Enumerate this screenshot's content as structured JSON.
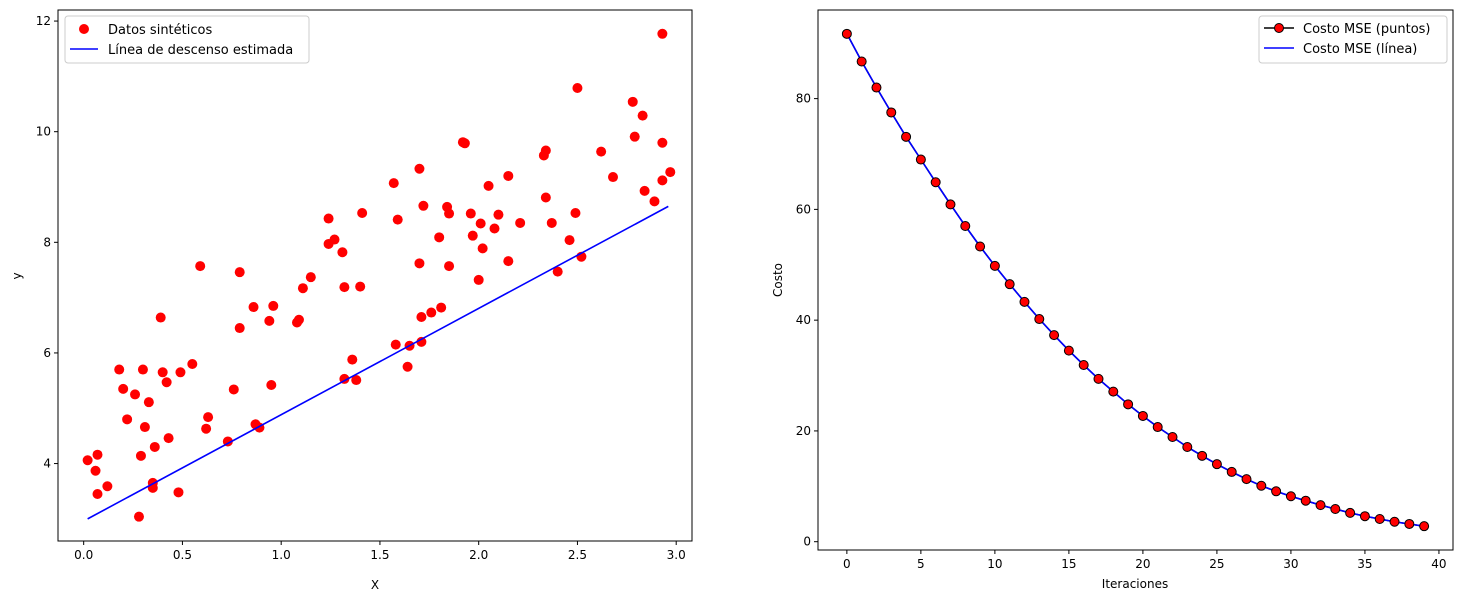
{
  "chart_data": [
    {
      "type": "scatter",
      "xlabel": "X",
      "ylabel": "y",
      "xlim": [
        -0.13,
        3.08
      ],
      "ylim": [
        2.6,
        12.2
      ],
      "xticks": [
        0.0,
        0.5,
        1.0,
        1.5,
        2.0,
        2.5,
        3.0
      ],
      "xtick_labels": [
        "0.0",
        "0.5",
        "1.0",
        "1.5",
        "2.0",
        "2.5",
        "3.0"
      ],
      "yticks": [
        4,
        6,
        8,
        10,
        12
      ],
      "ytick_labels": [
        "4",
        "6",
        "8",
        "10",
        "12"
      ],
      "legend_position": "top-left",
      "grid": false,
      "series": [
        {
          "name": "Datos sintéticos",
          "kind": "scatter",
          "color": "#ff0000",
          "points": [
            [
              0.02,
              4.06
            ],
            [
              0.06,
              3.87
            ],
            [
              0.07,
              4.16
            ],
            [
              0.07,
              3.45
            ],
            [
              0.12,
              3.59
            ],
            [
              0.18,
              5.7
            ],
            [
              0.2,
              5.35
            ],
            [
              0.22,
              4.8
            ],
            [
              0.26,
              5.25
            ],
            [
              0.28,
              3.04
            ],
            [
              0.29,
              4.14
            ],
            [
              0.3,
              5.7
            ],
            [
              0.31,
              4.66
            ],
            [
              0.33,
              5.11
            ],
            [
              0.35,
              3.56
            ],
            [
              0.35,
              3.65
            ],
            [
              0.36,
              4.3
            ],
            [
              0.39,
              6.64
            ],
            [
              0.4,
              5.65
            ],
            [
              0.42,
              5.47
            ],
            [
              0.43,
              4.46
            ],
            [
              0.48,
              3.48
            ],
            [
              0.49,
              5.65
            ],
            [
              0.55,
              5.8
            ],
            [
              0.59,
              7.57
            ],
            [
              0.62,
              4.63
            ],
            [
              0.63,
              4.84
            ],
            [
              0.73,
              4.4
            ],
            [
              0.76,
              5.34
            ],
            [
              0.79,
              6.45
            ],
            [
              0.79,
              7.46
            ],
            [
              0.86,
              6.83
            ],
            [
              0.87,
              4.71
            ],
            [
              0.89,
              4.65
            ],
            [
              0.94,
              6.58
            ],
            [
              0.95,
              5.42
            ],
            [
              0.96,
              6.85
            ],
            [
              1.08,
              6.55
            ],
            [
              1.09,
              6.6
            ],
            [
              1.11,
              7.17
            ],
            [
              1.15,
              7.37
            ],
            [
              1.24,
              8.43
            ],
            [
              1.24,
              7.97
            ],
            [
              1.27,
              8.05
            ],
            [
              1.31,
              7.82
            ],
            [
              1.32,
              7.19
            ],
            [
              1.32,
              5.53
            ],
            [
              1.36,
              5.88
            ],
            [
              1.38,
              5.51
            ],
            [
              1.4,
              7.2
            ],
            [
              1.41,
              8.53
            ],
            [
              1.57,
              9.07
            ],
            [
              1.58,
              6.15
            ],
            [
              1.59,
              8.41
            ],
            [
              1.64,
              5.75
            ],
            [
              1.65,
              6.13
            ],
            [
              1.7,
              9.33
            ],
            [
              1.7,
              7.62
            ],
            [
              1.71,
              6.65
            ],
            [
              1.71,
              6.2
            ],
            [
              1.72,
              8.66
            ],
            [
              1.76,
              6.73
            ],
            [
              1.8,
              8.09
            ],
            [
              1.81,
              6.82
            ],
            [
              1.84,
              8.64
            ],
            [
              1.85,
              8.52
            ],
            [
              1.85,
              7.57
            ],
            [
              1.92,
              9.81
            ],
            [
              1.93,
              9.79
            ],
            [
              1.96,
              8.52
            ],
            [
              1.97,
              8.12
            ],
            [
              2.0,
              7.32
            ],
            [
              2.01,
              8.34
            ],
            [
              2.02,
              7.89
            ],
            [
              2.05,
              9.02
            ],
            [
              2.08,
              8.25
            ],
            [
              2.1,
              8.5
            ],
            [
              2.15,
              9.2
            ],
            [
              2.15,
              7.66
            ],
            [
              2.21,
              8.35
            ],
            [
              2.33,
              9.57
            ],
            [
              2.34,
              8.81
            ],
            [
              2.34,
              9.66
            ],
            [
              2.37,
              8.35
            ],
            [
              2.4,
              7.47
            ],
            [
              2.46,
              8.04
            ],
            [
              2.49,
              8.53
            ],
            [
              2.5,
              10.79
            ],
            [
              2.52,
              7.74
            ],
            [
              2.62,
              9.64
            ],
            [
              2.68,
              9.18
            ],
            [
              2.78,
              10.54
            ],
            [
              2.79,
              9.91
            ],
            [
              2.83,
              10.29
            ],
            [
              2.84,
              8.93
            ],
            [
              2.89,
              8.74
            ],
            [
              2.93,
              11.77
            ],
            [
              2.93,
              9.8
            ],
            [
              2.93,
              9.12
            ],
            [
              2.97,
              9.27
            ]
          ]
        },
        {
          "name": "Línea de descenso estimada",
          "kind": "line",
          "color": "#0000ff",
          "points": [
            [
              0.02,
              3.0
            ],
            [
              2.96,
              8.65
            ]
          ]
        }
      ]
    },
    {
      "type": "line",
      "xlabel": "Iteraciones",
      "ylabel": "Costo",
      "xlim": [
        -1.95,
        40.95
      ],
      "ylim": [
        -1.5,
        96.0
      ],
      "xticks": [
        0,
        5,
        10,
        15,
        20,
        25,
        30,
        35,
        40
      ],
      "xtick_labels": [
        "0",
        "5",
        "10",
        "15",
        "20",
        "25",
        "30",
        "35",
        "40"
      ],
      "yticks": [
        0,
        20,
        40,
        60,
        80
      ],
      "ytick_labels": [
        "0",
        "20",
        "40",
        "60",
        "80"
      ],
      "legend_position": "top-right",
      "grid": false,
      "x": [
        0,
        1,
        2,
        3,
        4,
        5,
        6,
        7,
        8,
        9,
        10,
        11,
        12,
        13,
        14,
        15,
        16,
        17,
        18,
        19,
        20,
        21,
        22,
        23,
        24,
        25,
        26,
        27,
        28,
        29,
        30,
        31,
        32,
        33,
        34,
        35,
        36,
        37,
        38,
        39
      ],
      "series": [
        {
          "name": "Costo MSE (puntos)",
          "kind": "line-markers",
          "color": "#000000",
          "marker_color": "#ff0000",
          "values": [
            91.7,
            86.7,
            82.0,
            77.5,
            73.1,
            69.0,
            64.9,
            60.9,
            57.0,
            53.3,
            49.8,
            46.5,
            43.3,
            40.2,
            37.3,
            34.5,
            31.9,
            29.4,
            27.1,
            24.8,
            22.7,
            20.7,
            18.9,
            17.1,
            15.5,
            14.0,
            12.6,
            11.3,
            10.1,
            9.1,
            8.2,
            7.4,
            6.6,
            5.9,
            5.2,
            4.6,
            4.1,
            3.6,
            3.2,
            2.8
          ]
        },
        {
          "name": "Costo MSE (línea)",
          "kind": "line",
          "color": "#0000ff",
          "values": [
            91.7,
            86.7,
            82.0,
            77.5,
            73.1,
            69.0,
            64.9,
            60.9,
            57.0,
            53.3,
            49.8,
            46.5,
            43.3,
            40.2,
            37.3,
            34.5,
            31.9,
            29.4,
            27.1,
            24.8,
            22.7,
            20.7,
            18.9,
            17.1,
            15.5,
            14.0,
            12.6,
            11.3,
            10.1,
            9.1,
            8.2,
            7.4,
            6.6,
            5.9,
            5.2,
            4.6,
            4.1,
            3.6,
            3.2,
            2.8
          ]
        }
      ]
    }
  ]
}
